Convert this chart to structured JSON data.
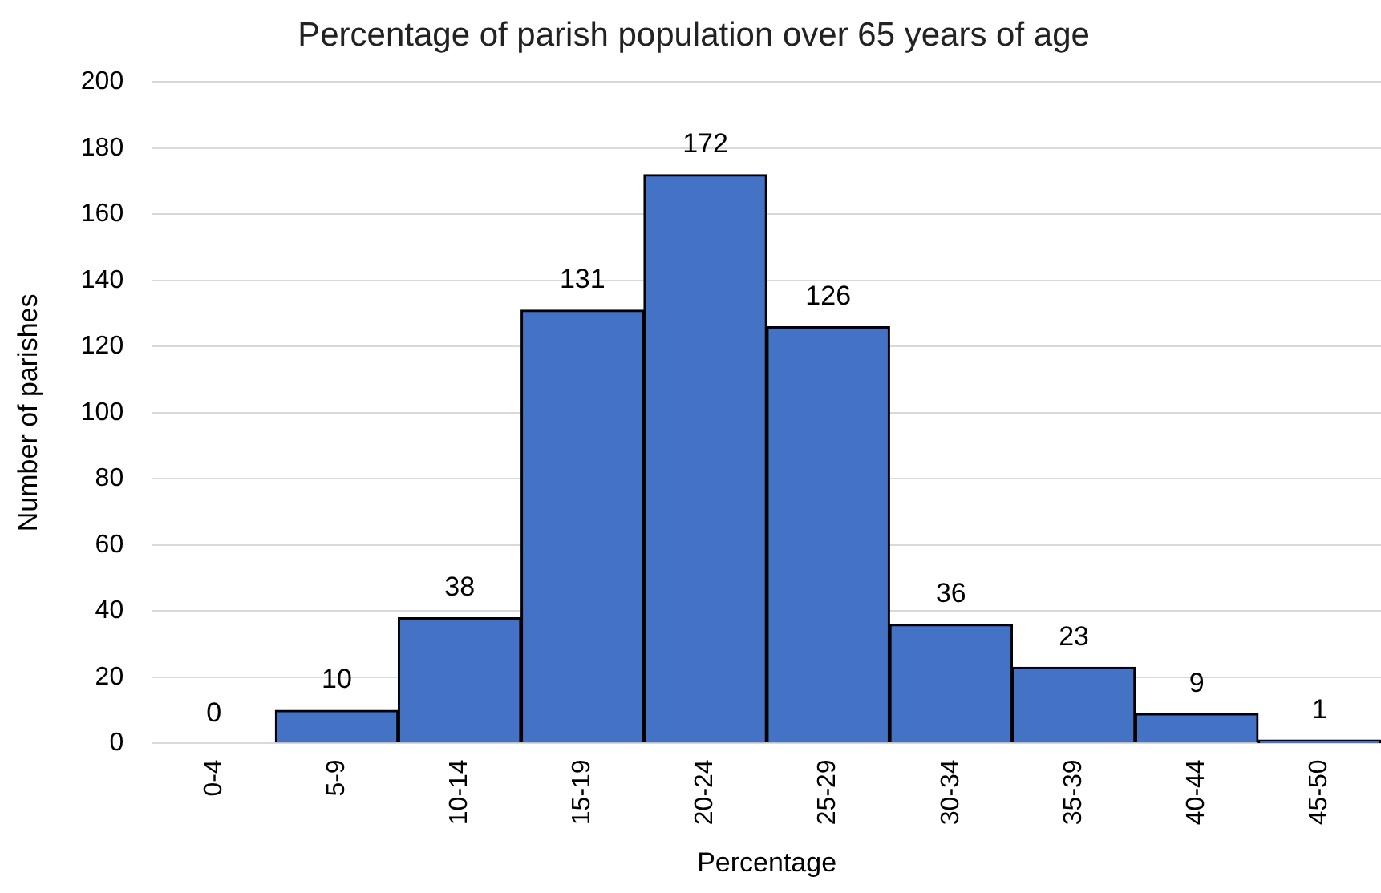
{
  "chart_data": {
    "type": "bar",
    "title": "Percentage of parish population over 65 years of age",
    "xlabel": "Percentage",
    "ylabel": "Number of parishes",
    "categories": [
      "0-4",
      "5-9",
      "10-14",
      "15-19",
      "20-24",
      "25-29",
      "30-34",
      "35-39",
      "40-44",
      "45-50"
    ],
    "values": [
      0,
      10,
      38,
      131,
      172,
      126,
      36,
      23,
      9,
      1
    ],
    "color": "#4472c4",
    "ylim": [
      0,
      200
    ],
    "yticks": [
      0,
      20,
      40,
      60,
      80,
      100,
      120,
      140,
      160,
      180,
      200
    ],
    "grid": "y",
    "data_labels": true,
    "legend": false
  }
}
